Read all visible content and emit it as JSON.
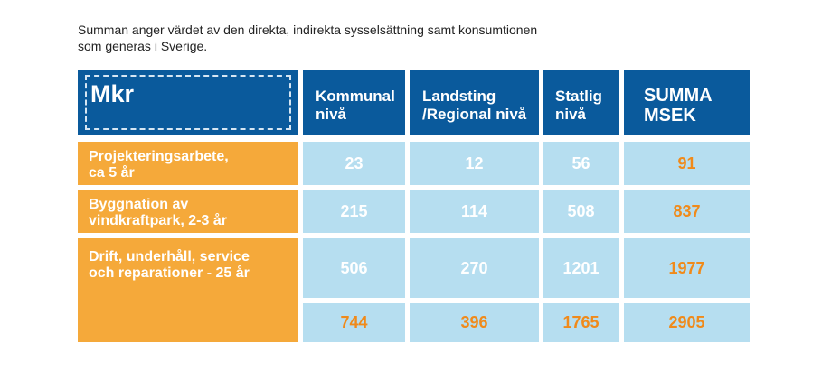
{
  "caption": {
    "line1": "Summan anger värdet av den direkta, indirekta sysselsättning samt konsumtionen",
    "line2": "som generas i Sverige."
  },
  "table": {
    "unit_label": "Mkr",
    "columns": [
      {
        "line1": "Kommunal",
        "line2": "nivå"
      },
      {
        "line1": "Landsting",
        "line2": "/Regional nivå"
      },
      {
        "line1": "Statlig",
        "line2": "nivå"
      },
      {
        "line1": "SUMMA",
        "line2": "MSEK"
      }
    ],
    "rows": [
      {
        "label_line1": "Projekteringsarbete,",
        "label_line2": "ca 5 år",
        "values": [
          "23",
          "12",
          "56",
          "91"
        ]
      },
      {
        "label_line1": "Byggnation av",
        "label_line2": "vindkraftpark, 2-3 år",
        "values": [
          "215",
          "114",
          "508",
          "837"
        ]
      },
      {
        "label_line1": "Drift, underhåll, service",
        "label_line2": "och reparationer - 25 år",
        "values": [
          "506",
          "270",
          "1201",
          "1977"
        ]
      }
    ],
    "totals": [
      "744",
      "396",
      "1765",
      "2905"
    ]
  },
  "colors": {
    "header_blue": "#0a5a9c",
    "label_orange": "#f5a93a",
    "cell_light_blue": "#b6def0",
    "value_orange": "#f08a1a"
  }
}
